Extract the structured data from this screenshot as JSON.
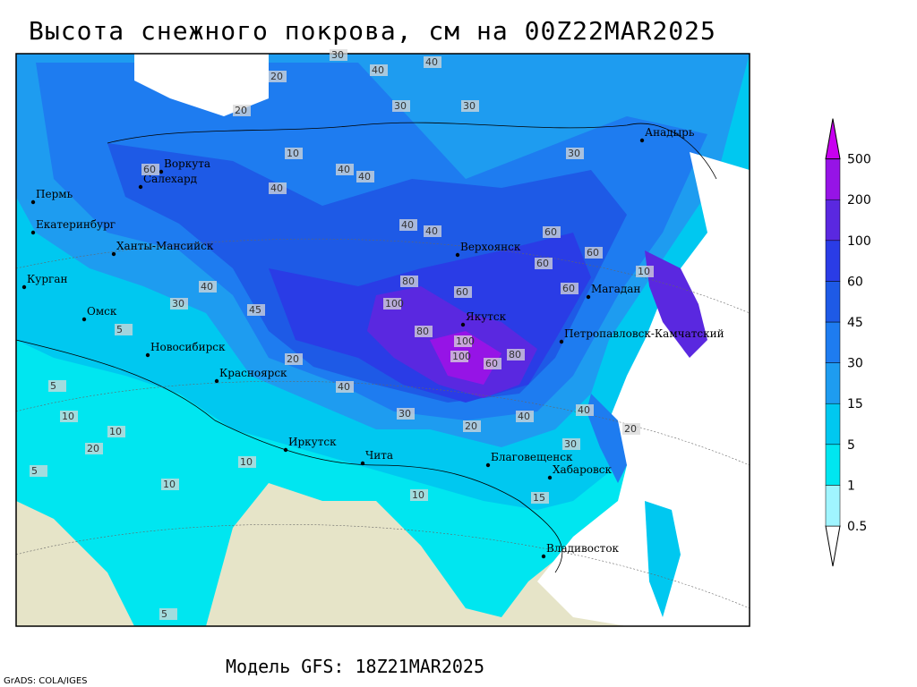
{
  "title": "Высота снежного покрова, см на 00Z22MAR2025",
  "footer": "Модель GFS: 18Z21MAR2025",
  "credit": "GrADS: COLA/IGES",
  "cities": [
    "Воркута",
    "Салехард",
    "Пермь",
    "Екатеринбург",
    "Ханты-Мансийск",
    "Курган",
    "Омск",
    "Новосибирск",
    "Красноярск",
    "Иркутск",
    "Чита",
    "Благовещенск",
    "Хабаровск",
    "Владивосток",
    "Якутск",
    "Верхоянск",
    "Магадан",
    "Петропавловск-Камчатский",
    "Анадырь"
  ],
  "contour_labels": [
    30,
    40,
    40,
    20,
    30,
    20,
    30,
    10,
    40,
    30,
    60,
    40,
    40,
    40,
    40,
    60,
    60,
    60,
    100,
    80,
    100,
    80,
    100,
    80,
    60,
    40,
    20,
    40,
    30,
    40,
    20,
    30,
    10,
    10,
    10,
    5,
    5,
    10,
    20,
    5,
    5,
    15,
    10,
    30,
    45,
    40,
    10,
    20,
    60,
    60
  ],
  "legend": {
    "levels": [
      0.5,
      1,
      5,
      15,
      30,
      45,
      60,
      100,
      200,
      500
    ],
    "colors": [
      "#ffffff",
      "#a0f5ff",
      "#00e6f0",
      "#00c8f0",
      "#1e9cf0",
      "#1e7cf0",
      "#1e5ae6",
      "#2a3ce6",
      "#5a28e0",
      "#9614e6",
      "#c800f0"
    ]
  }
}
